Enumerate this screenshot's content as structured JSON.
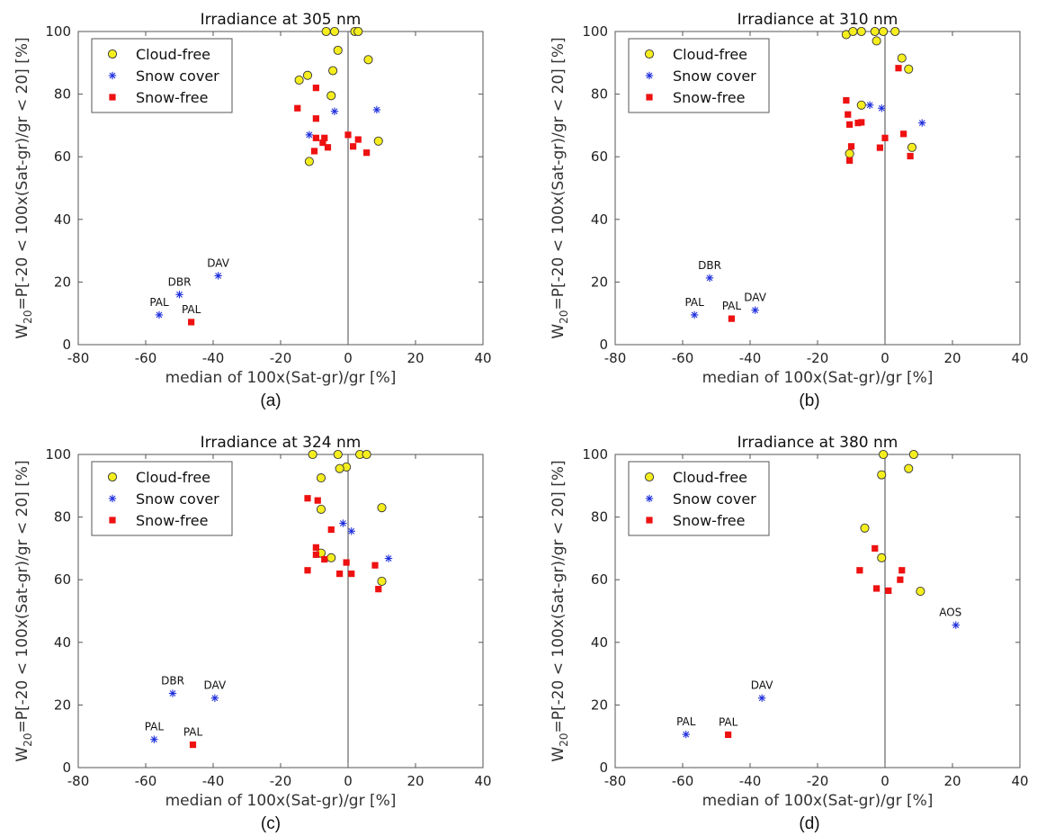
{
  "figure": {
    "y_label_main": "W",
    "y_label_sub": "20",
    "y_label_rest": "=P[-20 < 100x(Sat-gr)/gr < 20] [%]"
  },
  "legend_labels": [
    "Cloud-free",
    "Snow cover",
    "Snow-free"
  ],
  "colors": {
    "cloud_free": "#f5ee1e",
    "snow_cover": "#1f2fdc",
    "snow_free": "#ee1111",
    "axis": "#555555"
  },
  "chart_data": [
    {
      "type": "scatter",
      "letter": "(a)",
      "title": "Irradiance at 305 nm",
      "xlabel": "median of 100x(Sat-gr)/gr [%]",
      "xlim": [
        -80,
        40
      ],
      "ylim": [
        0,
        100
      ],
      "xticks": [
        -80,
        -60,
        -40,
        -20,
        0,
        20,
        40
      ],
      "yticks": [
        0,
        20,
        40,
        60,
        80,
        100
      ],
      "series": [
        {
          "name": "Cloud-free",
          "points": [
            [
              -6.5,
              100
            ],
            [
              -4,
              100
            ],
            [
              2,
              100
            ],
            [
              3,
              100
            ],
            [
              -3,
              94
            ],
            [
              6,
              91
            ],
            [
              -4.5,
              87.5
            ],
            [
              -12,
              86
            ],
            [
              -14.5,
              84.5
            ],
            [
              -5,
              79.5
            ],
            [
              9,
              65
            ],
            [
              -11.5,
              58.5
            ]
          ]
        },
        {
          "name": "Snow cover",
          "points": [
            [
              8.5,
              75
            ],
            [
              -4,
              74.5
            ],
            [
              -11.5,
              67
            ],
            [
              -56,
              9.5
            ],
            [
              -50,
              16
            ],
            [
              -38.5,
              22
            ]
          ]
        },
        {
          "name": "Snow-free",
          "points": [
            [
              -15,
              75.5
            ],
            [
              -9.5,
              82
            ],
            [
              -9.5,
              72.2
            ],
            [
              0,
              67
            ],
            [
              -9.5,
              66
            ],
            [
              -7,
              66
            ],
            [
              3,
              65.5
            ],
            [
              -7.5,
              64.5
            ],
            [
              -6,
              63
            ],
            [
              1.5,
              63.3
            ],
            [
              -10,
              61.8
            ],
            [
              5.5,
              61.3
            ],
            [
              -46.5,
              7.2
            ]
          ]
        }
      ],
      "annotations": [
        {
          "text": "PAL",
          "x": -56,
          "y": 9.5
        },
        {
          "text": "DBR",
          "x": -50,
          "y": 16
        },
        {
          "text": "DAV",
          "x": -38.5,
          "y": 22
        },
        {
          "text": "PAL",
          "x": -46.5,
          "y": 7.2
        }
      ]
    },
    {
      "type": "scatter",
      "letter": "(b)",
      "title": "Irradiance at 310 nm",
      "xlabel": "median of 100x(Sat-gr)/gr [%]",
      "xlim": [
        -80,
        40
      ],
      "ylim": [
        0,
        100
      ],
      "xticks": [
        -80,
        -60,
        -40,
        -20,
        0,
        20,
        40
      ],
      "yticks": [
        0,
        20,
        40,
        60,
        80,
        100
      ],
      "series": [
        {
          "name": "Cloud-free",
          "points": [
            [
              -11.5,
              99
            ],
            [
              -9.5,
              100
            ],
            [
              -7,
              100
            ],
            [
              -3,
              100
            ],
            [
              -0.5,
              100
            ],
            [
              3,
              100
            ],
            [
              -2.5,
              97
            ],
            [
              5,
              91.5
            ],
            [
              7,
              88
            ],
            [
              -7,
              76.5
            ],
            [
              8,
              63
            ],
            [
              -10.5,
              61
            ]
          ]
        },
        {
          "name": "Snow cover",
          "points": [
            [
              -4.5,
              76.5
            ],
            [
              -1,
              75.5
            ],
            [
              11,
              70.8
            ],
            [
              -52,
              21.3
            ],
            [
              -56.5,
              9.5
            ],
            [
              -38.5,
              11
            ]
          ]
        },
        {
          "name": "Snow-free",
          "points": [
            [
              4,
              88.3
            ],
            [
              -11.5,
              78
            ],
            [
              -11,
              73.5
            ],
            [
              -7,
              71
            ],
            [
              -8,
              70.8
            ],
            [
              -10.5,
              70.3
            ],
            [
              5.5,
              67.3
            ],
            [
              0,
              66
            ],
            [
              -10,
              63.3
            ],
            [
              -1.5,
              62.9
            ],
            [
              -10.5,
              58.8
            ],
            [
              7.5,
              60.2
            ],
            [
              -45.5,
              8.3
            ]
          ]
        }
      ],
      "annotations": [
        {
          "text": "DBR",
          "x": -52,
          "y": 21.3
        },
        {
          "text": "PAL",
          "x": -56.5,
          "y": 9.5
        },
        {
          "text": "PAL",
          "x": -45.5,
          "y": 8.3
        },
        {
          "text": "DAV",
          "x": -38.5,
          "y": 11
        }
      ]
    },
    {
      "type": "scatter",
      "letter": "(c)",
      "title": "Irradiance at 324 nm",
      "xlabel": "median of 100x(Sat-gr)/gr [%]",
      "xlim": [
        -80,
        40
      ],
      "ylim": [
        0,
        100
      ],
      "xticks": [
        -80,
        -60,
        -40,
        -20,
        0,
        20,
        40
      ],
      "yticks": [
        0,
        20,
        40,
        60,
        80,
        100
      ],
      "series": [
        {
          "name": "Cloud-free",
          "points": [
            [
              -10.5,
              100
            ],
            [
              -3,
              100
            ],
            [
              3.5,
              100
            ],
            [
              5.5,
              100
            ],
            [
              -0.5,
              96
            ],
            [
              -2.5,
              95.5
            ],
            [
              -8,
              92.5
            ],
            [
              -8,
              82.5
            ],
            [
              10,
              83
            ],
            [
              -8,
              68.5
            ],
            [
              -5,
              67
            ],
            [
              10,
              59.5
            ]
          ]
        },
        {
          "name": "Snow cover",
          "points": [
            [
              -1.5,
              78
            ],
            [
              1,
              75.5
            ],
            [
              12,
              66.8
            ],
            [
              -52,
              23.7
            ],
            [
              -39.5,
              22.2
            ],
            [
              -57.5,
              9
            ]
          ]
        },
        {
          "name": "Snow-free",
          "points": [
            [
              -12,
              86
            ],
            [
              -9,
              85.3
            ],
            [
              -5,
              76
            ],
            [
              -9.5,
              70.3
            ],
            [
              -9.5,
              68
            ],
            [
              -7,
              66.5
            ],
            [
              -0.5,
              65.5
            ],
            [
              8,
              64.6
            ],
            [
              -12,
              63
            ],
            [
              -2.5,
              61.9
            ],
            [
              1,
              61.9
            ],
            [
              9,
              57
            ],
            [
              -46,
              7.3
            ]
          ]
        }
      ],
      "annotations": [
        {
          "text": "DBR",
          "x": -52,
          "y": 23.7
        },
        {
          "text": "DAV",
          "x": -39.5,
          "y": 22.2
        },
        {
          "text": "PAL",
          "x": -57.5,
          "y": 9
        },
        {
          "text": "PAL",
          "x": -46,
          "y": 7.3
        }
      ]
    },
    {
      "type": "scatter",
      "letter": "(d)",
      "title": "Irradiance at 380 nm",
      "xlabel": "median of 100x(Sat-gr)/gr [%]",
      "xlim": [
        -80,
        40
      ],
      "ylim": [
        0,
        100
      ],
      "xticks": [
        -80,
        -60,
        -40,
        -20,
        0,
        20,
        40
      ],
      "yticks": [
        0,
        20,
        40,
        60,
        80,
        100
      ],
      "series": [
        {
          "name": "Cloud-free",
          "points": [
            [
              -0.5,
              100
            ],
            [
              8.5,
              100
            ],
            [
              7,
              95.5
            ],
            [
              -1,
              93.5
            ],
            [
              -6,
              76.5
            ],
            [
              -1,
              67
            ],
            [
              10.5,
              56.3
            ]
          ]
        },
        {
          "name": "Snow cover",
          "points": [
            [
              21,
              45.5
            ],
            [
              -36.5,
              22.2
            ],
            [
              -59,
              10.6
            ]
          ]
        },
        {
          "name": "Snow-free",
          "points": [
            [
              -3,
              70
            ],
            [
              5,
              63
            ],
            [
              -7.5,
              63
            ],
            [
              4.5,
              60
            ],
            [
              -2.5,
              57.2
            ],
            [
              1,
              56.5
            ],
            [
              -46.5,
              10.5
            ]
          ]
        }
      ],
      "annotations": [
        {
          "text": "AOS",
          "x": 21,
          "y": 45.5
        },
        {
          "text": "DAV",
          "x": -36.5,
          "y": 22.2
        },
        {
          "text": "PAL",
          "x": -59,
          "y": 10.6
        },
        {
          "text": "PAL",
          "x": -46.5,
          "y": 10.5
        }
      ]
    }
  ]
}
